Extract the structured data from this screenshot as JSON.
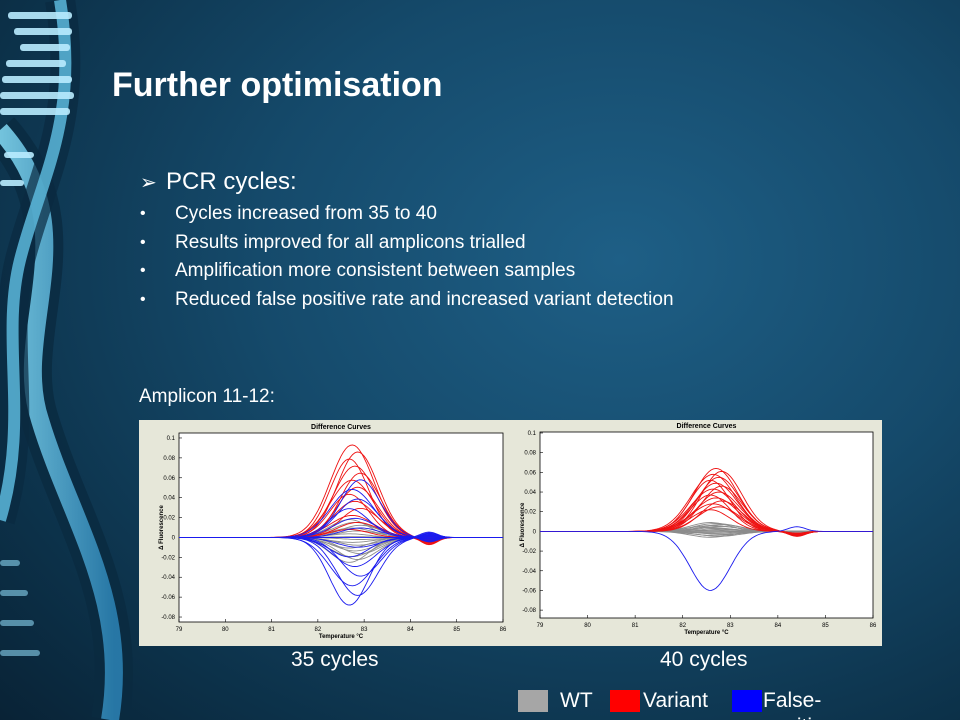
{
  "slide": {
    "title": "Further optimisation",
    "heading": "PCR cycles:",
    "bullets": [
      "Cycles increased from 35 to 40",
      "Results improved for all amplicons trialled",
      "Amplification more consistent between samples",
      "Reduced false positive rate and increased variant detection"
    ],
    "figure_label": "Amplicon 11-12:"
  },
  "captions": [
    "35 cycles",
    "40 cycles"
  ],
  "legend": [
    {
      "label": "WT",
      "color": "#a6a6a6"
    },
    {
      "label": "Variant",
      "color": "#ff0000"
    },
    {
      "label": "False-positive",
      "color": "#0000ff"
    }
  ],
  "chart_data": [
    {
      "type": "line",
      "title": "Difference Curves",
      "xlabel": "Temperature °C",
      "ylabel": "Δ Fluorescence",
      "xlim": [
        79,
        86
      ],
      "ylim": [
        -0.085,
        0.105
      ],
      "xticks": [
        "79",
        "80",
        "81",
        "82",
        "83",
        "84",
        "85",
        "86"
      ],
      "yticks": [
        "0.1",
        "0.08",
        "0.06",
        "0.04",
        "0.02",
        "0",
        "-0.02",
        "-0.04",
        "-0.06",
        "-0.08"
      ],
      "peak_temperature": 82.8,
      "series": [
        {
          "group": "WT",
          "color": "#8c8c8c",
          "count": 16,
          "peak_range": [
            -0.025,
            0.018
          ]
        },
        {
          "group": "Variant",
          "color": "#ee1111",
          "count": 13,
          "peak_range": [
            0.008,
            0.093
          ]
        },
        {
          "group": "False-positive",
          "color": "#1a1aee",
          "count": 14,
          "peak_range": [
            -0.068,
            0.058
          ]
        }
      ]
    },
    {
      "type": "line",
      "title": "Difference Curves",
      "xlabel": "Temperature °C",
      "ylabel": "Δ Fluorescence",
      "xlim": [
        79,
        86
      ],
      "ylim": [
        -0.088,
        0.101
      ],
      "xticks": [
        "79",
        "80",
        "81",
        "82",
        "83",
        "84",
        "85",
        "86"
      ],
      "yticks": [
        "0.1",
        "0.08",
        "0.06",
        "0.04",
        "0.02",
        "0",
        "-0.02",
        "-0.04",
        "-0.06",
        "-0.08"
      ],
      "peak_temperature": 82.7,
      "series": [
        {
          "group": "WT",
          "color": "#8c8c8c",
          "count": 16,
          "peak_range": [
            -0.006,
            0.009
          ]
        },
        {
          "group": "Variant",
          "color": "#ee1111",
          "count": 15,
          "peak_range": [
            0.022,
            0.064
          ]
        },
        {
          "group": "False-positive",
          "color": "#1a1aee",
          "count": 1,
          "peak_range": [
            -0.06,
            -0.06
          ]
        }
      ]
    }
  ]
}
